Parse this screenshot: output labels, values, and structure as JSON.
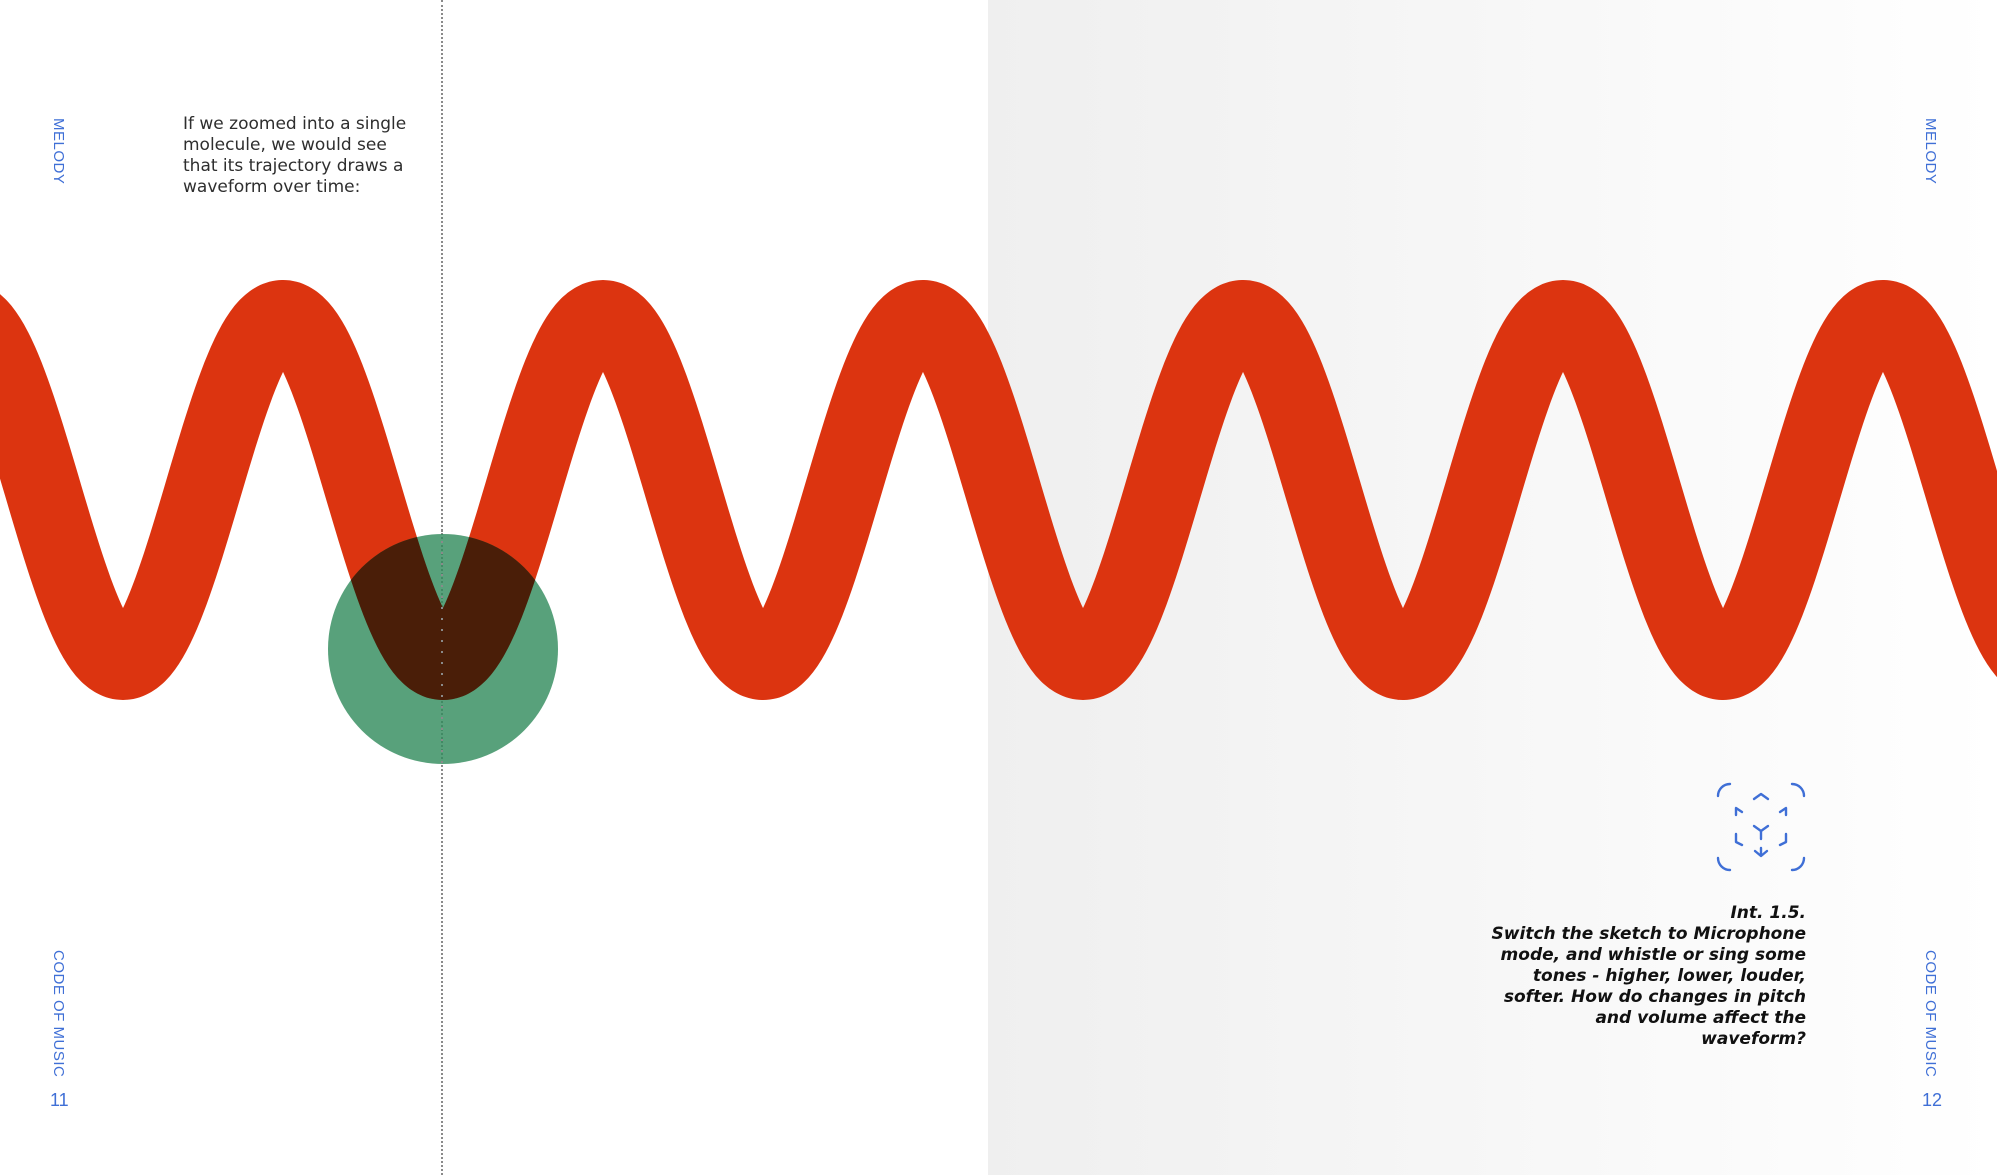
{
  "left_page": {
    "side_label_top": "MELODY",
    "side_label_bottom": "CODE OF MUSIC",
    "page_number": "11",
    "intro_text": "If we zoomed into a single molecule, we would see that its trajectory draws a waveform over time:"
  },
  "right_page": {
    "side_label_top": "MELODY",
    "side_label_bottom": "CODE OF MUSIC",
    "page_number": "12",
    "caption": {
      "title": "Int. 1.5.",
      "text": "Switch the sketch to Microphone mode, and whistle or sing some tones - higher, lower, louder, softer. How do changes in pitch and volume affect the waveform?"
    }
  },
  "illustration": {
    "wave_color": "#dc3410",
    "molecule_color": "#2e8a5a",
    "overlap_color": "#4a1e08"
  },
  "icons": {
    "interaction": "3d-cube-scan-icon"
  },
  "colors": {
    "accent": "#3f6fd6",
    "right_page_bg": "#efefef"
  }
}
